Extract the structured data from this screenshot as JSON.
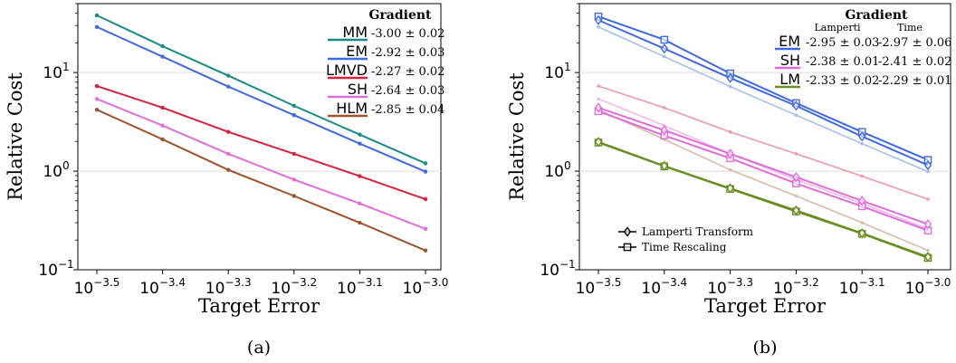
{
  "chart_data": [
    {
      "type": "line",
      "xlabel": "Target Error",
      "ylabel": "Relative Cost",
      "caption": "(a)",
      "x_scale": "log",
      "y_scale": "log",
      "x": [
        -3.5,
        -3.4,
        -3.3,
        -3.2,
        -3.1,
        -3.0
      ],
      "x_ticks": [
        "10^-3.5",
        "10^-3.4",
        "10^-3.3",
        "10^-3.2",
        "10^-3.1",
        "10^-3.0"
      ],
      "y_ticks": [
        "10^-1",
        "10^0",
        "10^1"
      ],
      "ylim": [
        0.1,
        50
      ],
      "grid": "horizontal",
      "legend_title": "Gradient",
      "legend_position": "top-right",
      "series": [
        {
          "name": "MM",
          "gradient": "-3.00 ± 0.02",
          "color": "#1a8c85",
          "values": [
            38,
            18.5,
            9.3,
            4.6,
            2.35,
            1.2
          ]
        },
        {
          "name": "EM",
          "gradient": "-2.92 ± 0.03",
          "color": "#4169e1",
          "values": [
            29,
            14.5,
            7.2,
            3.7,
            1.9,
            0.99
          ]
        },
        {
          "name": "LMVD",
          "gradient": "-2.27 ± 0.02",
          "color": "#d6213f",
          "values": [
            7.3,
            4.4,
            2.5,
            1.5,
            0.89,
            0.52
          ]
        },
        {
          "name": "SH",
          "gradient": "-2.64 ± 0.03",
          "color": "#df6fd8",
          "values": [
            5.4,
            2.9,
            1.5,
            0.82,
            0.47,
            0.26
          ]
        },
        {
          "name": "HLM",
          "gradient": "-2.85 ± 0.04",
          "color": "#a0522d",
          "values": [
            4.2,
            2.1,
            1.03,
            0.56,
            0.3,
            0.157
          ]
        }
      ]
    },
    {
      "type": "line",
      "xlabel": "Target Error",
      "ylabel": "Relative Cost",
      "caption": "(b)",
      "x_scale": "log",
      "y_scale": "log",
      "x": [
        -3.5,
        -3.4,
        -3.3,
        -3.2,
        -3.1,
        -3.0
      ],
      "x_ticks": [
        "10^-3.5",
        "10^-3.4",
        "10^-3.3",
        "10^-3.2",
        "10^-3.1",
        "10^-3.0"
      ],
      "y_ticks": [
        "10^-1",
        "10^0",
        "10^1"
      ],
      "ylim": [
        0.1,
        50
      ],
      "grid": "horizontal",
      "legend_title": "Gradient",
      "legend_columns": [
        "Lamperti",
        "Time"
      ],
      "legend_position": "top-right",
      "marker_legend": [
        {
          "label": "Lamperti Transform",
          "marker": "diamond"
        },
        {
          "label": "Time Rescaling",
          "marker": "square"
        }
      ],
      "marker_legend_position": "bottom-left",
      "series": [
        {
          "name": "EM",
          "color": "#4169e1",
          "gradients": [
            "-2.95 ± 0.03",
            "-2.97 ± 0.06"
          ],
          "lamperti": [
            34,
            17.5,
            8.8,
            4.6,
            2.25,
            1.15
          ],
          "time": [
            37,
            21.5,
            9.8,
            4.9,
            2.5,
            1.3
          ]
        },
        {
          "name": "SH",
          "color": "#df6fd8",
          "gradients": [
            "-2.38 ± 0.01",
            "-2.41 ± 0.02"
          ],
          "lamperti": [
            4.4,
            2.6,
            1.5,
            0.87,
            0.5,
            0.29
          ],
          "time": [
            4.05,
            2.3,
            1.35,
            0.75,
            0.44,
            0.25
          ]
        },
        {
          "name": "LM",
          "color": "#6b8e23",
          "gradients": [
            "-2.33 ± 0.02",
            "-2.29 ± 0.01"
          ],
          "lamperti": [
            1.98,
            1.13,
            0.67,
            0.4,
            0.235,
            0.135
          ],
          "time": [
            1.95,
            1.12,
            0.66,
            0.39,
            0.232,
            0.132
          ]
        }
      ],
      "background_series": [
        {
          "color": "#a6bdf0",
          "values": [
            29,
            14.5,
            7.2,
            3.7,
            1.9,
            0.99
          ]
        },
        {
          "color": "#ee9aaa",
          "values": [
            7.3,
            4.4,
            2.5,
            1.5,
            0.89,
            0.52
          ]
        },
        {
          "color": "#f2b9ee",
          "values": [
            5.4,
            2.9,
            1.5,
            0.82,
            0.47,
            0.26
          ]
        },
        {
          "color": "#d7bba8",
          "values": [
            4.2,
            2.1,
            1.03,
            0.56,
            0.3,
            0.157
          ]
        }
      ]
    }
  ]
}
